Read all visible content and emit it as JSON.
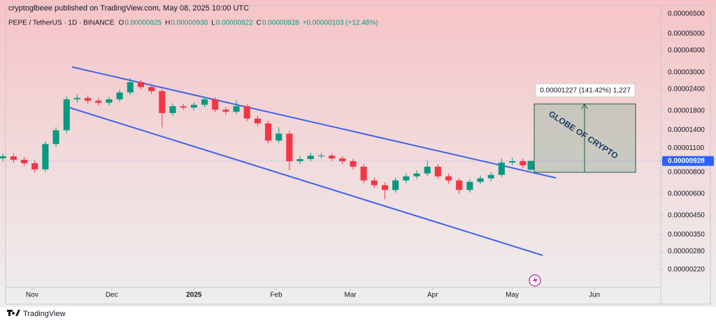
{
  "chart_data": {
    "type": "candlestick",
    "publisher": "cryptoglbeee published on TradingView.com, May 08, 2025 10:00 UTC",
    "symbol": "PEPE / TetherUS · 1D · BINANCE",
    "legend_items": [
      {
        "label": "O",
        "value": "0.00000825"
      },
      {
        "label": "H",
        "value": "0.00000930"
      },
      {
        "label": "L",
        "value": "0.00000822"
      },
      {
        "label": "C",
        "value": "0.00000928"
      }
    ],
    "change": "+0.00000103 (+12.48%)",
    "measure_label": "0.00001227 (141.42%) 1,227",
    "watermark": "GLOBE OF CRYPTO",
    "brand": "TradingView",
    "up_color": "#089981",
    "down_color": "#f23645",
    "log_scale": true,
    "last_price": 9.28e-06,
    "x": [
      "2024-10-21",
      "2024-10-25",
      "2024-10-29",
      "2024-11-02",
      "2024-11-06",
      "2024-11-10",
      "2024-11-14",
      "2024-11-18",
      "2024-11-22",
      "2024-11-26",
      "2024-11-30",
      "2024-12-04",
      "2024-12-08",
      "2024-12-12",
      "2024-12-16",
      "2024-12-20",
      "2024-12-24",
      "2024-12-28",
      "2025-01-01",
      "2025-01-05",
      "2025-01-09",
      "2025-01-13",
      "2025-01-17",
      "2025-01-21",
      "2025-01-25",
      "2025-01-29",
      "2025-02-02",
      "2025-02-06",
      "2025-02-10",
      "2025-02-14",
      "2025-02-18",
      "2025-02-22",
      "2025-02-26",
      "2025-03-02",
      "2025-03-06",
      "2025-03-10",
      "2025-03-14",
      "2025-03-18",
      "2025-03-22",
      "2025-03-26",
      "2025-03-30",
      "2025-04-03",
      "2025-04-07",
      "2025-04-11",
      "2025-04-15",
      "2025-04-19",
      "2025-04-23",
      "2025-04-27",
      "2025-05-01",
      "2025-05-05",
      "2025-05-08"
    ],
    "open": [
      9.6e-06,
      9.86e-06,
      9.42e-06,
      9e-06,
      8.3e-06,
      1.161e-05,
      1.393e-05,
      2.097e-05,
      2.135e-05,
      2.059e-05,
      2.004e-05,
      2.097e-05,
      2.297e-05,
      2.632e-05,
      2.47e-05,
      2.338e-05,
      1.749e-05,
      1.914e-05,
      1.88e-05,
      1.95e-05,
      2.097e-05,
      1.829e-05,
      1.78e-05,
      1.914e-05,
      1.626e-05,
      1.525e-05,
      1.215e-05,
      1.331e-05,
      9.25e-06,
      9.51e-06,
      9.95e-06,
      9.95e-06,
      9.59e-06,
      9.25e-06,
      8.6e-06,
      7.17e-06,
      6.73e-06,
      6.32e-06,
      7.17e-06,
      7.57e-06,
      7.86e-06,
      8.6e-06,
      7.57e-06,
      7.17e-06,
      6.32e-06,
      7.04e-06,
      7.37e-06,
      7.71e-06,
      9.08e-06,
      9.25e-06,
      8.25e-06
    ],
    "high": [
      1.025e-05,
      1.025e-05,
      9.8e-06,
      9.35e-06,
      1.2e-05,
      1.45e-05,
      2.18e-05,
      2.25e-05,
      2.21e-05,
      2.13e-05,
      2.17e-05,
      2.38e-05,
      2.78e-05,
      2.72e-05,
      2.56e-05,
      2.4e-05,
      1.99e-05,
      1.98e-05,
      2.02e-05,
      2.17e-05,
      2.15e-05,
      1.89e-05,
      2.08e-05,
      1.97e-05,
      1.68e-05,
      1.58e-05,
      1.45e-05,
      1.38e-05,
      9.9e-06,
      1.04e-05,
      1.03e-05,
      1.03e-05,
      9.9e-06,
      9.55e-06,
      8.9e-06,
      7.45e-06,
      7e-06,
      7.45e-06,
      7.9e-06,
      8.2e-06,
      9.3e-06,
      8.9e-06,
      7.85e-06,
      7.4e-06,
      7.3e-06,
      7.65e-06,
      8e-06,
      9.6e-06,
      9.7e-06,
      9.55e-06,
      9.3e-06
    ],
    "low": [
      9.2e-06,
      9.05e-06,
      8.65e-06,
      7.95e-06,
      8e-06,
      1.12e-05,
      1.34e-05,
      2.01e-05,
      1.98e-05,
      1.93e-05,
      1.93e-05,
      2.03e-05,
      2.23e-05,
      2.39e-05,
      2.25e-05,
      1.45e-05,
      1.69e-05,
      1.82e-05,
      1.82e-05,
      1.89e-05,
      1.77e-05,
      1.71e-05,
      1.73e-05,
      1.57e-05,
      1.47e-05,
      1.17e-05,
      1.17e-05,
      8.2e-06,
      8.9e-06,
      9.2e-06,
      9.6e-06,
      9.25e-06,
      8.9e-06,
      8.3e-06,
      6.9e-06,
      6.5e-06,
      5.6e-06,
      6.1e-06,
      6.9e-06,
      7.3e-06,
      7.6e-06,
      7.3e-06,
      6.9e-06,
      6e-06,
      6.1e-06,
      6.8e-06,
      7.1e-06,
      7.5e-06,
      8.8e-06,
      8.45e-06,
      8.22e-06
    ],
    "close": [
      9.86e-06,
      9.42e-06,
      9e-06,
      8.3e-06,
      1.161e-05,
      1.393e-05,
      2.097e-05,
      2.135e-05,
      2.059e-05,
      2.004e-05,
      2.097e-05,
      2.297e-05,
      2.632e-05,
      2.47e-05,
      2.338e-05,
      1.749e-05,
      1.914e-05,
      1.88e-05,
      1.95e-05,
      2.097e-05,
      1.829e-05,
      1.78e-05,
      1.914e-05,
      1.626e-05,
      1.525e-05,
      1.215e-05,
      1.331e-05,
      9.25e-06,
      9.51e-06,
      9.95e-06,
      9.95e-06,
      9.59e-06,
      9.25e-06,
      8.6e-06,
      7.17e-06,
      6.73e-06,
      6.32e-06,
      7.17e-06,
      7.57e-06,
      7.86e-06,
      8.6e-06,
      7.57e-06,
      7.17e-06,
      6.32e-06,
      7.04e-06,
      7.37e-06,
      7.71e-06,
      9.08e-06,
      9.25e-06,
      8.76e-06,
      9.28e-06
    ],
    "xlim": [
      "2024-10-22",
      "2025-06-26"
    ],
    "xticks": [
      {
        "value": "2024-11-01",
        "label": "Nov"
      },
      {
        "value": "2024-12-01",
        "label": "Dec"
      },
      {
        "value": "2025-01-01",
        "label": "2025"
      },
      {
        "value": "2025-02-01",
        "label": "Feb"
      },
      {
        "value": "2025-03-01",
        "label": "Mar"
      },
      {
        "value": "2025-04-01",
        "label": "Apr"
      },
      {
        "value": "2025-05-01",
        "label": "May"
      },
      {
        "value": "2025-06-01",
        "label": "Jun"
      }
    ],
    "ylim": [
      1.74e-06,
      7.12e-05
    ],
    "yticks": [
      {
        "value": 6.5e-05,
        "label": "0.00006500"
      },
      {
        "value": 5e-05,
        "label": "0.00005000"
      },
      {
        "value": 4e-05,
        "label": "0.00004000"
      },
      {
        "value": 3e-05,
        "label": "0.00003000"
      },
      {
        "value": 2.4e-05,
        "label": "0.00002400"
      },
      {
        "value": 1.8e-05,
        "label": "0.00001800"
      },
      {
        "value": 1.4e-05,
        "label": "0.00001400"
      },
      {
        "value": 1.1e-05,
        "label": "0.00001100"
      },
      {
        "value": 8e-06,
        "label": "0.00000800"
      },
      {
        "value": 6e-06,
        "label": "0.00000600"
      },
      {
        "value": 4.5e-06,
        "label": "0.00000450"
      },
      {
        "value": 3.5e-06,
        "label": "0.00000350"
      },
      {
        "value": 2.8e-06,
        "label": "0.00000280"
      },
      {
        "value": 2.2e-06,
        "label": "0.00000220"
      }
    ]
  }
}
